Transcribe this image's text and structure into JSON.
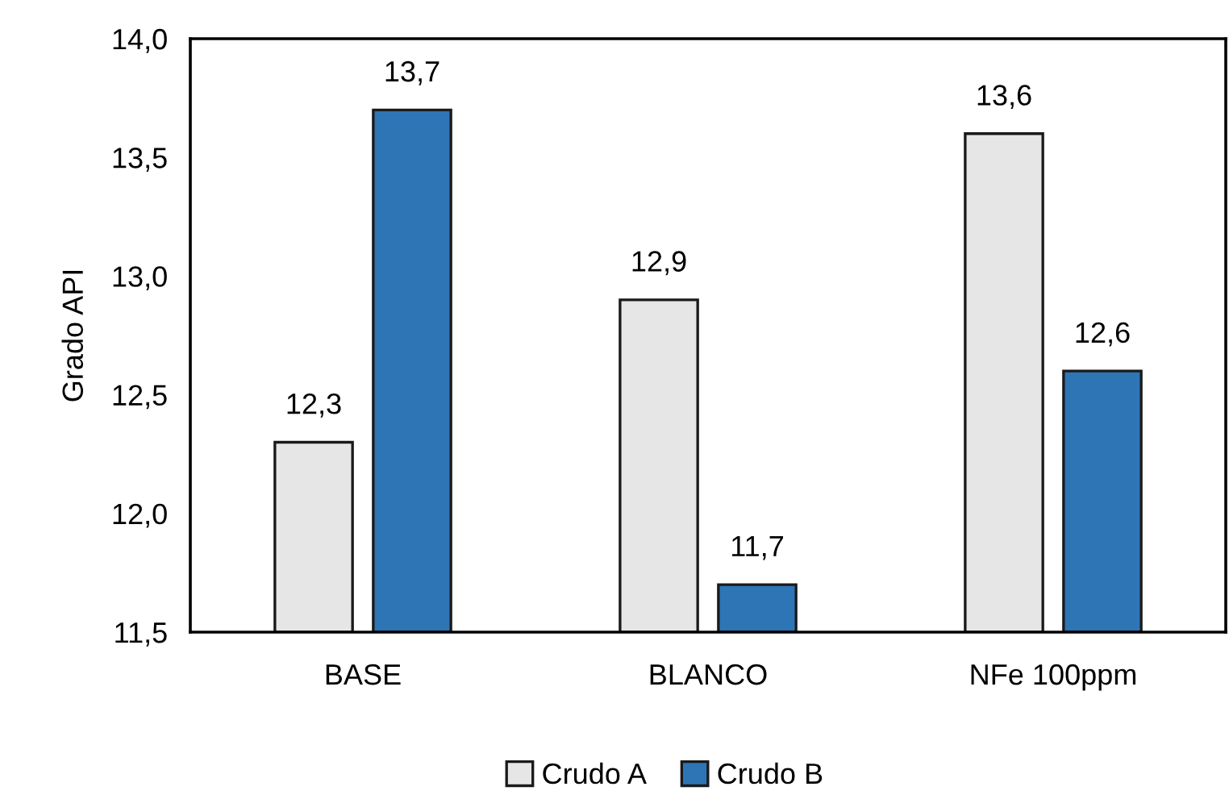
{
  "chart_data": {
    "type": "bar",
    "ylabel": "Grado API",
    "categories": [
      "BASE",
      "BLANCO",
      "NFe 100ppm"
    ],
    "series": [
      {
        "name": "Crudo A",
        "color": "#e6e6e6",
        "values": [
          12.3,
          12.9,
          13.6
        ],
        "value_labels": [
          "12,3",
          "12,9",
          "13,6"
        ]
      },
      {
        "name": "Crudo B",
        "color": "#2e75b6",
        "values": [
          13.7,
          11.7,
          12.6
        ],
        "value_labels": [
          "13,7",
          "11,7",
          "12,6"
        ]
      }
    ],
    "ylim": [
      11.5,
      14.0
    ],
    "yticks": [
      {
        "value": 11.5,
        "label": "11,5"
      },
      {
        "value": 12.0,
        "label": "12,0"
      },
      {
        "value": 12.5,
        "label": "12,5"
      },
      {
        "value": 13.0,
        "label": "13,0"
      },
      {
        "value": 13.5,
        "label": "13,5"
      },
      {
        "value": 14.0,
        "label": "14,0"
      }
    ],
    "grid": false,
    "legend": "bottom"
  }
}
